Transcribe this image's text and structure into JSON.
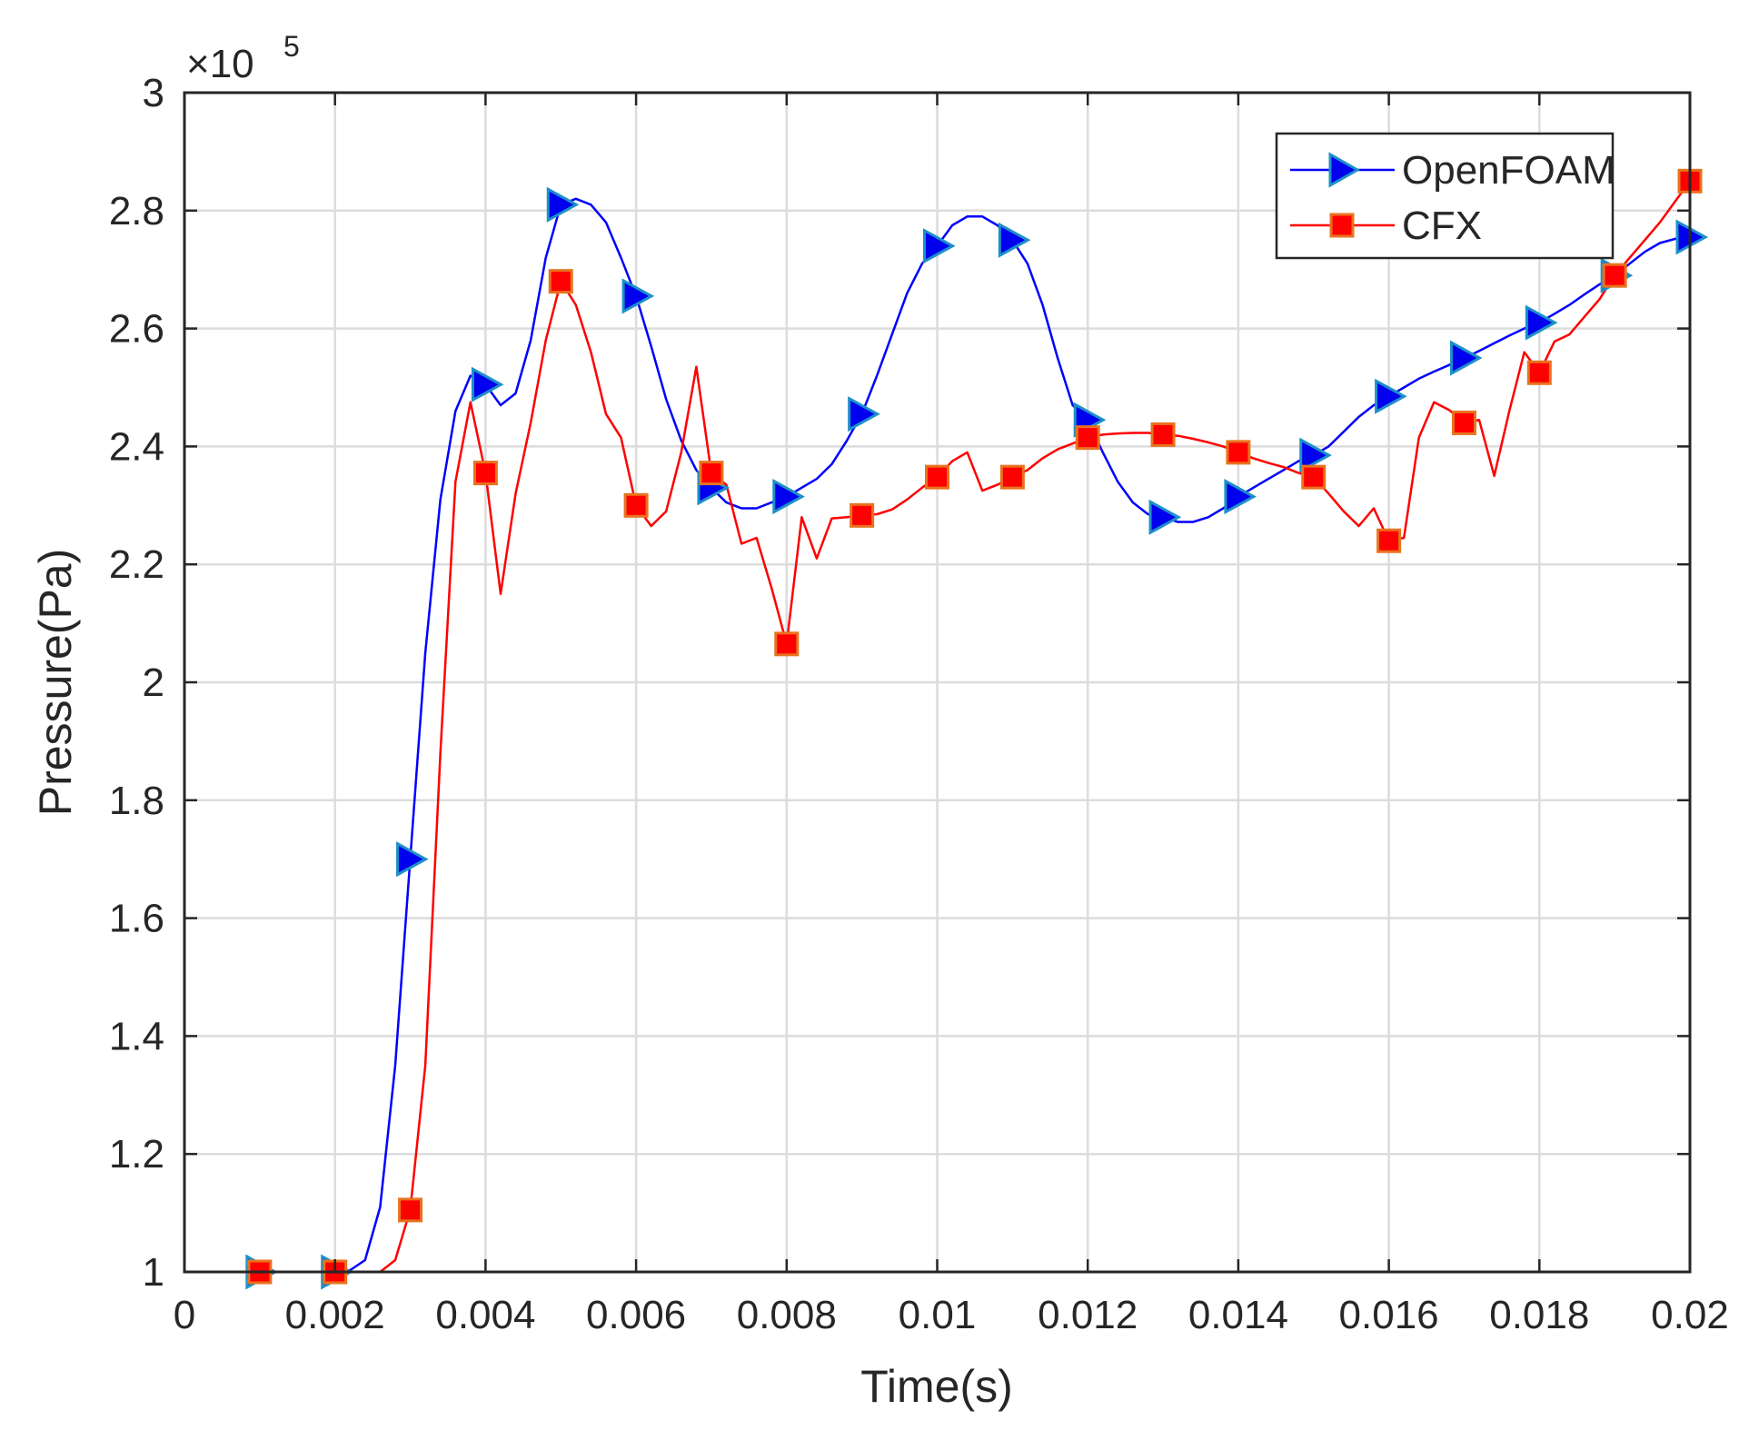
{
  "chart_data": {
    "type": "line",
    "xlabel": "Time(s)",
    "ylabel": "Pressure(Pa)",
    "y_multiplier": "×10",
    "y_multiplier_exponent": "5",
    "xlim": [
      0,
      0.02
    ],
    "ylim": [
      1,
      3
    ],
    "x_ticks": [
      0,
      0.002,
      0.004,
      0.006,
      0.008,
      0.01,
      0.012,
      0.014,
      0.016,
      0.018,
      0.02
    ],
    "x_tick_labels": [
      "0",
      "0.002",
      "0.004",
      "0.006",
      "0.008",
      "0.01",
      "0.012",
      "0.014",
      "0.016",
      "0.018",
      "0.02"
    ],
    "y_ticks": [
      1,
      1.2,
      1.4,
      1.6,
      1.8,
      2,
      2.2,
      2.4,
      2.6,
      2.8,
      3
    ],
    "y_tick_labels": [
      "1",
      "1.2",
      "1.4",
      "1.6",
      "1.8",
      "2",
      "2.2",
      "2.4",
      "2.6",
      "2.8",
      "3"
    ],
    "grid": true,
    "legend_position": "top-right",
    "series": [
      {
        "name": "OpenFOAM",
        "color": "#0000ff",
        "marker": "triangle-right",
        "marker_fill": "#0000ee",
        "marker_edge": "#1e90c8",
        "line": [
          [
            0,
            1.0
          ],
          [
            0.002,
            1.0
          ],
          [
            0.0022,
            1.003
          ],
          [
            0.0024,
            1.02
          ],
          [
            0.0026,
            1.11
          ],
          [
            0.0028,
            1.35
          ],
          [
            0.003,
            1.7
          ],
          [
            0.0032,
            2.05
          ],
          [
            0.0034,
            2.31
          ],
          [
            0.0036,
            2.46
          ],
          [
            0.0038,
            2.52
          ],
          [
            0.004,
            2.505
          ],
          [
            0.0042,
            2.47
          ],
          [
            0.0044,
            2.49
          ],
          [
            0.0046,
            2.58
          ],
          [
            0.0048,
            2.72
          ],
          [
            0.005,
            2.81
          ],
          [
            0.0052,
            2.82
          ],
          [
            0.0054,
            2.81
          ],
          [
            0.0056,
            2.78
          ],
          [
            0.0058,
            2.72
          ],
          [
            0.006,
            2.655
          ],
          [
            0.0062,
            2.57
          ],
          [
            0.0064,
            2.48
          ],
          [
            0.0066,
            2.41
          ],
          [
            0.0068,
            2.36
          ],
          [
            0.007,
            2.33
          ],
          [
            0.0072,
            2.305
          ],
          [
            0.0074,
            2.295
          ],
          [
            0.0076,
            2.295
          ],
          [
            0.0078,
            2.305
          ],
          [
            0.008,
            2.315
          ],
          [
            0.0082,
            2.33
          ],
          [
            0.0084,
            2.345
          ],
          [
            0.0086,
            2.37
          ],
          [
            0.0088,
            2.41
          ],
          [
            0.009,
            2.455
          ],
          [
            0.0092,
            2.52
          ],
          [
            0.0094,
            2.59
          ],
          [
            0.0096,
            2.66
          ],
          [
            0.0098,
            2.71
          ],
          [
            0.01,
            2.74
          ],
          [
            0.0102,
            2.775
          ],
          [
            0.0104,
            2.79
          ],
          [
            0.0106,
            2.79
          ],
          [
            0.0108,
            2.775
          ],
          [
            0.011,
            2.75
          ],
          [
            0.0112,
            2.71
          ],
          [
            0.0114,
            2.64
          ],
          [
            0.0116,
            2.55
          ],
          [
            0.0118,
            2.47
          ],
          [
            0.012,
            2.445
          ],
          [
            0.0122,
            2.39
          ],
          [
            0.0124,
            2.34
          ],
          [
            0.0126,
            2.305
          ],
          [
            0.0128,
            2.285
          ],
          [
            0.013,
            2.28
          ],
          [
            0.0132,
            2.272
          ],
          [
            0.0134,
            2.272
          ],
          [
            0.0136,
            2.28
          ],
          [
            0.0138,
            2.295
          ],
          [
            0.014,
            2.315
          ],
          [
            0.0142,
            2.33
          ],
          [
            0.0144,
            2.345
          ],
          [
            0.0146,
            2.36
          ],
          [
            0.0148,
            2.375
          ],
          [
            0.015,
            2.385
          ],
          [
            0.0152,
            2.4
          ],
          [
            0.0154,
            2.425
          ],
          [
            0.0156,
            2.45
          ],
          [
            0.0158,
            2.47
          ],
          [
            0.016,
            2.485
          ],
          [
            0.0162,
            2.5
          ],
          [
            0.0164,
            2.515
          ],
          [
            0.0166,
            2.527
          ],
          [
            0.0168,
            2.538
          ],
          [
            0.017,
            2.55
          ],
          [
            0.0172,
            2.562
          ],
          [
            0.0174,
            2.575
          ],
          [
            0.0176,
            2.588
          ],
          [
            0.0178,
            2.6
          ],
          [
            0.018,
            2.61
          ],
          [
            0.0182,
            2.625
          ],
          [
            0.0184,
            2.64
          ],
          [
            0.0186,
            2.658
          ],
          [
            0.0188,
            2.675
          ],
          [
            0.019,
            2.69
          ],
          [
            0.0192,
            2.71
          ],
          [
            0.0194,
            2.73
          ],
          [
            0.0196,
            2.745
          ],
          [
            0.0198,
            2.752
          ],
          [
            0.02,
            2.755
          ]
        ],
        "markers": [
          [
            0.001,
            1.0
          ],
          [
            0.002,
            1.0
          ],
          [
            0.003,
            1.7
          ],
          [
            0.004,
            2.505
          ],
          [
            0.005,
            2.81
          ],
          [
            0.006,
            2.655
          ],
          [
            0.007,
            2.33
          ],
          [
            0.008,
            2.315
          ],
          [
            0.009,
            2.455
          ],
          [
            0.01,
            2.74
          ],
          [
            0.011,
            2.75
          ],
          [
            0.012,
            2.445
          ],
          [
            0.013,
            2.28
          ],
          [
            0.014,
            2.315
          ],
          [
            0.015,
            2.385
          ],
          [
            0.016,
            2.485
          ],
          [
            0.017,
            2.55
          ],
          [
            0.018,
            2.61
          ],
          [
            0.019,
            2.69
          ],
          [
            0.02,
            2.755
          ]
        ]
      },
      {
        "name": "CFX",
        "color": "#ff0000",
        "marker": "square",
        "marker_fill": "#ff0000",
        "marker_edge": "#e8731e",
        "line": [
          [
            0,
            1.0
          ],
          [
            0.0026,
            1.0
          ],
          [
            0.0028,
            1.02
          ],
          [
            0.003,
            1.105
          ],
          [
            0.0032,
            1.35
          ],
          [
            0.0034,
            1.88
          ],
          [
            0.0036,
            2.34
          ],
          [
            0.0038,
            2.475
          ],
          [
            0.004,
            2.355
          ],
          [
            0.0042,
            2.15
          ],
          [
            0.0044,
            2.32
          ],
          [
            0.0046,
            2.44
          ],
          [
            0.0048,
            2.58
          ],
          [
            0.005,
            2.68
          ],
          [
            0.0052,
            2.64
          ],
          [
            0.0054,
            2.56
          ],
          [
            0.0056,
            2.455
          ],
          [
            0.0058,
            2.415
          ],
          [
            0.006,
            2.3
          ],
          [
            0.0062,
            2.265
          ],
          [
            0.0064,
            2.29
          ],
          [
            0.0066,
            2.39
          ],
          [
            0.0068,
            2.535
          ],
          [
            0.007,
            2.355
          ],
          [
            0.0072,
            2.335
          ],
          [
            0.0074,
            2.235
          ],
          [
            0.0076,
            2.245
          ],
          [
            0.0078,
            2.16
          ],
          [
            0.008,
            2.065
          ],
          [
            0.0082,
            2.28
          ],
          [
            0.0084,
            2.21
          ],
          [
            0.0086,
            2.278
          ],
          [
            0.0088,
            2.28
          ],
          [
            0.009,
            2.283
          ],
          [
            0.0092,
            2.285
          ],
          [
            0.0094,
            2.293
          ],
          [
            0.0096,
            2.31
          ],
          [
            0.0098,
            2.33
          ],
          [
            0.01,
            2.348
          ],
          [
            0.0102,
            2.375
          ],
          [
            0.0104,
            2.39
          ],
          [
            0.0106,
            2.325
          ],
          [
            0.0108,
            2.335
          ],
          [
            0.011,
            2.348
          ],
          [
            0.0112,
            2.36
          ],
          [
            0.0114,
            2.38
          ],
          [
            0.0116,
            2.395
          ],
          [
            0.0118,
            2.405
          ],
          [
            0.012,
            2.415
          ],
          [
            0.0122,
            2.42
          ],
          [
            0.0124,
            2.422
          ],
          [
            0.0126,
            2.423
          ],
          [
            0.0128,
            2.423
          ],
          [
            0.013,
            2.42
          ],
          [
            0.0132,
            2.418
          ],
          [
            0.0134,
            2.413
          ],
          [
            0.0136,
            2.407
          ],
          [
            0.0138,
            2.4
          ],
          [
            0.014,
            2.39
          ],
          [
            0.0142,
            2.38
          ],
          [
            0.0144,
            2.372
          ],
          [
            0.0146,
            2.365
          ],
          [
            0.0148,
            2.355
          ],
          [
            0.015,
            2.348
          ],
          [
            0.0152,
            2.32
          ],
          [
            0.0154,
            2.29
          ],
          [
            0.0156,
            2.265
          ],
          [
            0.0158,
            2.295
          ],
          [
            0.016,
            2.24
          ],
          [
            0.0162,
            2.245
          ],
          [
            0.0164,
            2.415
          ],
          [
            0.0166,
            2.475
          ],
          [
            0.0168,
            2.462
          ],
          [
            0.017,
            2.44
          ],
          [
            0.0172,
            2.445
          ],
          [
            0.0174,
            2.35
          ],
          [
            0.0176,
            2.46
          ],
          [
            0.0178,
            2.56
          ],
          [
            0.018,
            2.525
          ],
          [
            0.0182,
            2.578
          ],
          [
            0.0184,
            2.59
          ],
          [
            0.0186,
            2.62
          ],
          [
            0.0188,
            2.65
          ],
          [
            0.019,
            2.69
          ],
          [
            0.0192,
            2.72
          ],
          [
            0.0194,
            2.75
          ],
          [
            0.0196,
            2.78
          ],
          [
            0.0198,
            2.815
          ],
          [
            0.02,
            2.85
          ]
        ],
        "markers": [
          [
            0.001,
            1.0
          ],
          [
            0.002,
            1.0
          ],
          [
            0.003,
            1.105
          ],
          [
            0.004,
            2.355
          ],
          [
            0.005,
            2.68
          ],
          [
            0.006,
            2.3
          ],
          [
            0.007,
            2.355
          ],
          [
            0.008,
            2.065
          ],
          [
            0.009,
            2.283
          ],
          [
            0.01,
            2.348
          ],
          [
            0.011,
            2.348
          ],
          [
            0.012,
            2.415
          ],
          [
            0.013,
            2.42
          ],
          [
            0.014,
            2.39
          ],
          [
            0.015,
            2.348
          ],
          [
            0.016,
            2.24
          ],
          [
            0.017,
            2.44
          ],
          [
            0.018,
            2.525
          ],
          [
            0.019,
            2.69
          ],
          [
            0.02,
            2.85
          ]
        ]
      }
    ]
  }
}
